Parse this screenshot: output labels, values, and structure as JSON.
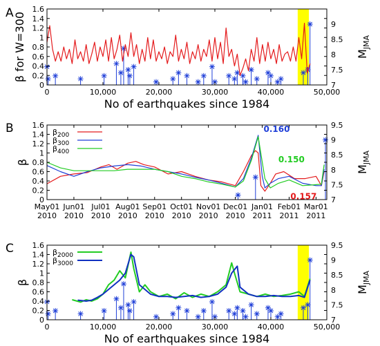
{
  "colors": {
    "red": "#e41a1c",
    "blue": "#1f3fd8",
    "green": "#22cc22",
    "navy": "#1030c0",
    "highlight": "#ffff00"
  },
  "chart_data": [
    {
      "panel": "A",
      "type": "line",
      "xlabel": "No of earthquakes since 1984",
      "ylabel": "β for W=300",
      "ylabel_right": "M",
      "ylabel_right_sub": "JMA",
      "xlim": [
        0,
        50000
      ],
      "ylim": [
        0,
        1.6
      ],
      "ylim_right": [
        7,
        9.5
      ],
      "x_ticks": [
        "0",
        "10,000",
        "20,000",
        "30,000",
        "40,000",
        "50,000"
      ],
      "y_ticks": [
        "0",
        "0.2",
        "0.4",
        "0.6",
        "0.8",
        "1",
        "1.2",
        "1.4",
        "1.6"
      ],
      "y_ticks_right": [
        "7",
        "7.5",
        "8",
        "8.5",
        "9"
      ],
      "highlight": [
        44800,
        46800
      ],
      "series": [
        {
          "color": "red",
          "x": [
            0,
            500,
            1000,
            1500,
            2000,
            2500,
            3000,
            3500,
            4000,
            4500,
            5000,
            5500,
            6000,
            6500,
            7000,
            7500,
            8000,
            8500,
            9000,
            9500,
            10000,
            10500,
            11000,
            11500,
            12000,
            12500,
            13000,
            13500,
            14000,
            14500,
            15000,
            15500,
            16000,
            16500,
            17000,
            17500,
            18000,
            18500,
            19000,
            19500,
            20000,
            20500,
            21000,
            21500,
            22000,
            22500,
            23000,
            23500,
            24000,
            24500,
            25000,
            25500,
            26000,
            26500,
            27000,
            27500,
            28000,
            28500,
            29000,
            29500,
            30000,
            30500,
            31000,
            31500,
            32000,
            32500,
            33000,
            33500,
            34000,
            34500,
            35000,
            35500,
            36000,
            36500,
            37000,
            37500,
            38000,
            38500,
            39000,
            39500,
            40000,
            40500,
            41000,
            41500,
            42000,
            42500,
            43000,
            43500,
            44000,
            44500,
            45000,
            45500,
            46000,
            46500,
            47000
          ],
          "values": [
            0.9,
            1.25,
            0.75,
            0.5,
            0.7,
            0.5,
            0.8,
            0.55,
            0.75,
            0.45,
            0.95,
            0.55,
            0.7,
            0.5,
            0.85,
            0.45,
            0.65,
            0.9,
            0.5,
            0.8,
            0.6,
            0.95,
            0.5,
            1.0,
            0.55,
            0.75,
            1.05,
            0.5,
            0.85,
            0.6,
            1.1,
            0.6,
            0.85,
            0.45,
            0.75,
            0.5,
            1.0,
            0.55,
            0.95,
            0.5,
            0.7,
            0.55,
            0.8,
            0.45,
            0.7,
            0.6,
            1.05,
            0.5,
            0.75,
            0.55,
            0.9,
            0.45,
            0.7,
            0.55,
            0.85,
            0.5,
            0.75,
            0.6,
            0.95,
            0.5,
            1.0,
            0.55,
            0.9,
            0.45,
            1.2,
            0.6,
            0.75,
            0.4,
            0.65,
            0.2,
            0.35,
            0.55,
            0.3,
            0.75,
            0.5,
            1.0,
            0.45,
            0.85,
            0.5,
            0.9,
            0.55,
            0.75,
            0.45,
            0.85,
            0.5,
            0.65,
            0.7,
            0.5,
            0.8,
            0.5,
            1.0,
            0.55,
            1.3,
            0.25,
            0.45
          ]
        },
        {
          "color": "blue",
          "kind": "quakes",
          "x": [
            0,
            200,
            1500,
            6000,
            10200,
            12400,
            13200,
            13700,
            14500,
            14800,
            15500,
            19500,
            22500,
            23500,
            25000,
            27000,
            28000,
            29500,
            30000,
            32500,
            33500,
            34000,
            35000,
            35500,
            36500,
            37500,
            39500,
            40000,
            41200,
            41800,
            45800,
            46600,
            47000
          ],
          "m": [
            7.6,
            7.2,
            7.3,
            7.2,
            7.3,
            7.7,
            7.4,
            8.2,
            7.5,
            7.3,
            7.6,
            7.1,
            7.2,
            7.4,
            7.3,
            7.1,
            7.3,
            7.6,
            7.1,
            7.3,
            7.2,
            7.4,
            7.3,
            7.1,
            7.5,
            7.2,
            7.4,
            7.3,
            7.1,
            7.2,
            7.4,
            7.5,
            9.0
          ]
        }
      ]
    },
    {
      "panel": "B",
      "type": "line",
      "ylabel": "β",
      "ylabel_right": "M",
      "ylabel_right_sub": "JMA",
      "ylim": [
        0,
        1.6
      ],
      "ylim_right": [
        7,
        9.5
      ],
      "y_ticks": [
        "0",
        "0.2",
        "0.4",
        "0.6",
        "0.8",
        "1",
        "1.2",
        "1.4",
        "1.6"
      ],
      "y_ticks_right": [
        "7",
        "7.5",
        "8",
        "8.5",
        "9",
        "9.5"
      ],
      "x_ticks": [
        {
          "m": "May01",
          "y": "2010"
        },
        {
          "m": "Jun01",
          "y": "2010"
        },
        {
          "m": "Jul01",
          "y": "2010"
        },
        {
          "m": "Aug01",
          "y": "2010"
        },
        {
          "m": "Sep01",
          "y": "2010"
        },
        {
          "m": "Oct01",
          "y": "2010"
        },
        {
          "m": "Nov01",
          "y": "2010"
        },
        {
          "m": "Dec01",
          "y": "2010"
        },
        {
          "m": "Jan01",
          "y": "2011"
        },
        {
          "m": "Feb01",
          "y": "2011"
        },
        {
          "m": "Mar01",
          "y": "2011"
        }
      ],
      "xlim": [
        0,
        10.4
      ],
      "annotations": [
        {
          "text": "0.160",
          "color": "blue",
          "x": 8.05,
          "y": 1.45
        },
        {
          "text": "0.150",
          "color": "green",
          "x": 8.6,
          "y": 0.8
        },
        {
          "text": "0.157",
          "color": "red",
          "x": 9.05,
          "y": 0.01
        }
      ],
      "series": [
        {
          "name": "β200",
          "color": "red",
          "x": [
            0,
            0.5,
            1.0,
            1.5,
            2.0,
            2.3,
            2.6,
            3.0,
            3.3,
            3.6,
            4.0,
            4.5,
            5.0,
            5.5,
            6.0,
            6.5,
            7.0,
            7.3,
            7.6,
            7.75,
            7.85,
            7.95,
            8.1,
            8.3,
            8.5,
            8.8,
            9.2,
            9.6,
            10.0,
            10.2,
            10.3
          ],
          "values": [
            0.34,
            0.5,
            0.55,
            0.58,
            0.7,
            0.75,
            0.65,
            0.78,
            0.82,
            0.75,
            0.7,
            0.55,
            0.6,
            0.5,
            0.42,
            0.38,
            0.3,
            0.6,
            0.95,
            1.05,
            1.0,
            0.3,
            0.18,
            0.35,
            0.55,
            0.6,
            0.45,
            0.45,
            0.5,
            0.3,
            0.6
          ]
        },
        {
          "name": "β300",
          "color": "blue",
          "x": [
            0,
            0.5,
            1.0,
            1.5,
            2.0,
            2.5,
            3.0,
            3.5,
            4.0,
            4.5,
            5.0,
            5.5,
            6.0,
            6.5,
            7.0,
            7.3,
            7.6,
            7.85,
            8.0,
            8.1,
            8.3,
            8.6,
            9.0,
            9.5,
            10.0,
            10.2,
            10.3
          ],
          "values": [
            0.73,
            0.6,
            0.5,
            0.6,
            0.68,
            0.72,
            0.75,
            0.72,
            0.65,
            0.6,
            0.55,
            0.48,
            0.42,
            0.35,
            0.27,
            0.45,
            0.9,
            1.38,
            0.5,
            0.25,
            0.35,
            0.45,
            0.5,
            0.35,
            0.3,
            0.3,
            0.65
          ]
        },
        {
          "name": "β400",
          "color": "green",
          "x": [
            0,
            0.5,
            1.0,
            1.5,
            2.0,
            2.5,
            3.0,
            3.5,
            4.0,
            4.5,
            5.0,
            5.5,
            6.0,
            6.5,
            7.0,
            7.3,
            7.6,
            7.85,
            8.1,
            8.3,
            8.6,
            9.0,
            9.5,
            10.0,
            10.2,
            10.3
          ],
          "values": [
            0.8,
            0.68,
            0.62,
            0.62,
            0.62,
            0.62,
            0.65,
            0.65,
            0.65,
            0.6,
            0.5,
            0.45,
            0.38,
            0.33,
            0.27,
            0.4,
            0.85,
            1.35,
            0.45,
            0.25,
            0.35,
            0.42,
            0.3,
            0.32,
            0.33,
            0.75
          ]
        },
        {
          "color": "blue",
          "kind": "quakes",
          "x": [
            7.1,
            7.75,
            10.35
          ],
          "m": [
            7.15,
            7.75,
            9.0
          ]
        }
      ]
    },
    {
      "panel": "C",
      "type": "line",
      "xlabel": "No of earthquakes since 1984",
      "ylabel": "β",
      "ylabel_right": "M",
      "ylabel_right_sub": "JMA",
      "xlim": [
        0,
        50000
      ],
      "ylim": [
        0,
        1.6
      ],
      "ylim_right": [
        7,
        9.5
      ],
      "x_ticks": [
        "0",
        "10,000",
        "20,000",
        "30,000",
        "40,000",
        "50,000"
      ],
      "y_ticks": [
        "0",
        "0.2",
        "0.4",
        "0.6",
        "0.8",
        "1",
        "1.2",
        "1.4",
        "1.6"
      ],
      "y_ticks_right": [
        "7",
        "7.5",
        "8",
        "8.5",
        "9",
        "9.5"
      ],
      "highlight": [
        44800,
        46800
      ],
      "series": [
        {
          "name": "β2000",
          "color": "green",
          "x": [
            4500,
            6000,
            7000,
            8000,
            9000,
            10000,
            11000,
            12000,
            13000,
            14000,
            15000,
            15500,
            16500,
            17500,
            18500,
            20000,
            21500,
            23000,
            24500,
            26000,
            27500,
            29000,
            30500,
            32000,
            33000,
            33500,
            34500,
            36000,
            37500,
            39000,
            40500,
            42000,
            43500,
            45000,
            46000,
            47000
          ],
          "values": [
            0.43,
            0.38,
            0.43,
            0.4,
            0.45,
            0.55,
            0.75,
            0.85,
            1.05,
            0.9,
            1.45,
            1.1,
            0.6,
            0.75,
            0.6,
            0.5,
            0.55,
            0.45,
            0.58,
            0.48,
            0.55,
            0.5,
            0.6,
            0.75,
            1.22,
            1.0,
            0.6,
            0.55,
            0.5,
            0.55,
            0.5,
            0.52,
            0.55,
            0.6,
            0.5,
            0.88
          ]
        },
        {
          "name": "β3000",
          "color": "navy",
          "x": [
            5500,
            7000,
            8000,
            9000,
            10000,
            11000,
            12000,
            13000,
            14000,
            15000,
            15500,
            16500,
            17500,
            18500,
            20000,
            21500,
            23000,
            24500,
            26000,
            27500,
            29000,
            30500,
            32000,
            33000,
            34000,
            34500,
            36000,
            37500,
            39000,
            40500,
            42000,
            43500,
            45000,
            46000,
            47000
          ],
          "values": [
            0.42,
            0.4,
            0.42,
            0.48,
            0.55,
            0.65,
            0.75,
            0.85,
            1.0,
            1.4,
            1.35,
            0.75,
            0.65,
            0.55,
            0.5,
            0.5,
            0.48,
            0.5,
            0.52,
            0.48,
            0.5,
            0.55,
            0.7,
            1.0,
            1.15,
            0.7,
            0.55,
            0.5,
            0.5,
            0.52,
            0.5,
            0.5,
            0.52,
            0.48,
            0.85
          ]
        },
        {
          "color": "blue",
          "kind": "quakes",
          "x": [
            0,
            200,
            1500,
            6000,
            10200,
            12400,
            13200,
            13700,
            14500,
            14800,
            15500,
            19500,
            22500,
            23500,
            25000,
            27000,
            28000,
            29500,
            30000,
            32500,
            33500,
            34000,
            35000,
            35500,
            36500,
            37500,
            39500,
            40000,
            41200,
            41800,
            45800,
            46600,
            47000
          ],
          "m": [
            7.6,
            7.2,
            7.3,
            7.2,
            7.3,
            7.7,
            7.4,
            8.2,
            7.5,
            7.3,
            7.6,
            7.1,
            7.2,
            7.4,
            7.3,
            7.1,
            7.3,
            7.6,
            7.1,
            7.3,
            7.2,
            7.4,
            7.3,
            7.1,
            7.5,
            7.2,
            7.4,
            7.3,
            7.1,
            7.2,
            7.4,
            7.5,
            9.0
          ]
        }
      ]
    }
  ]
}
